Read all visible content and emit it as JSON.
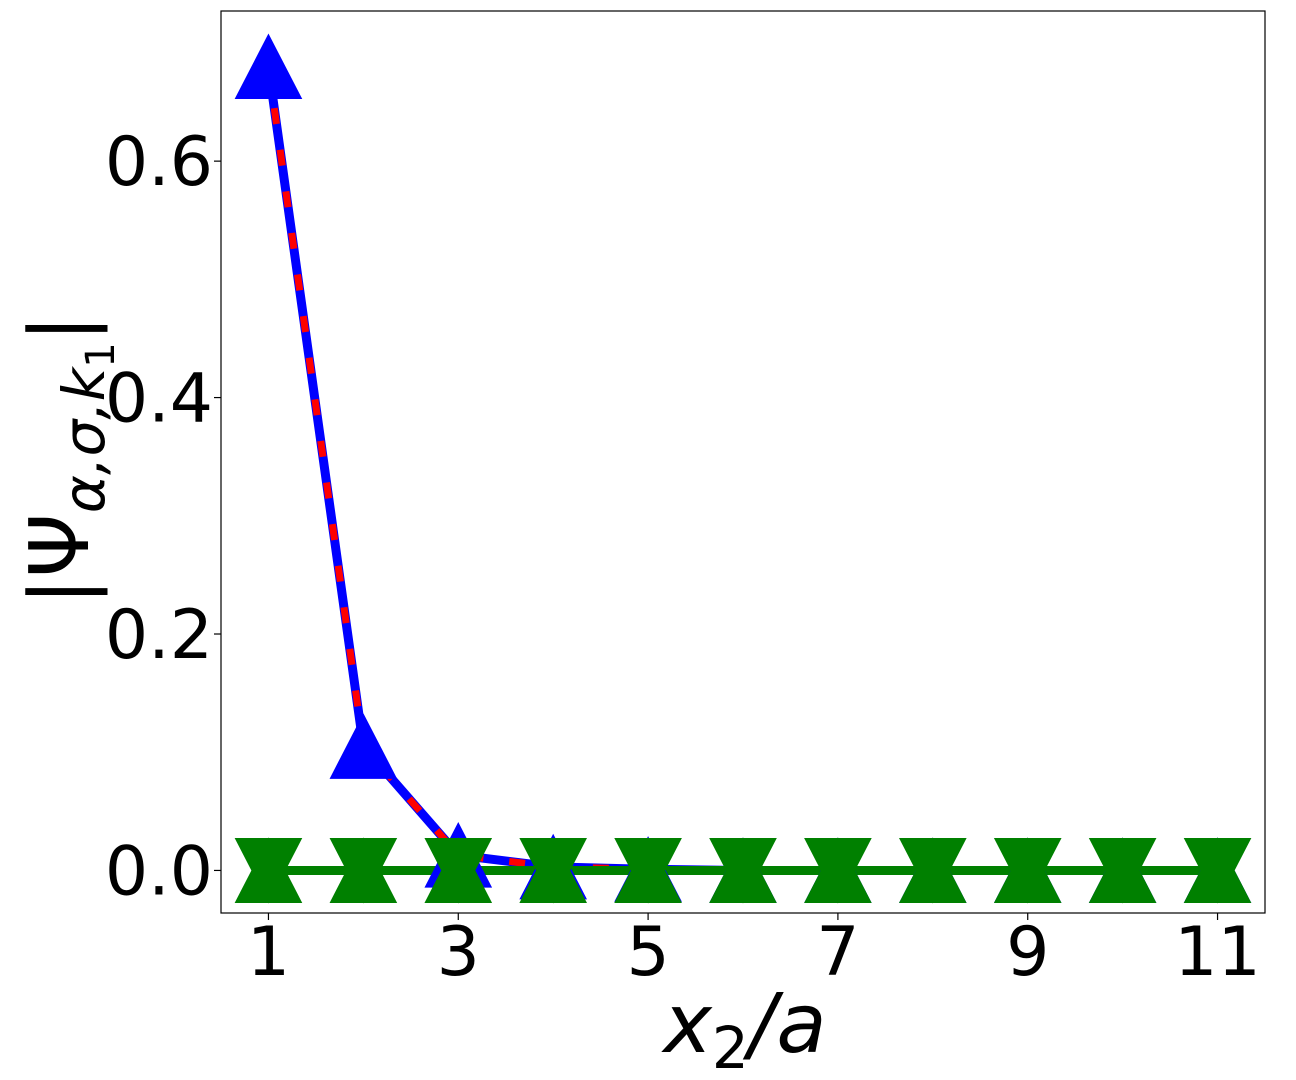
{
  "chart_data": {
    "type": "line",
    "title": "",
    "xlabel_main": "x",
    "xlabel_sub": "2",
    "xlabel_tail": "/a",
    "ylabel_base": "|Ψ",
    "ylabel_sub": "α,σ,k",
    "ylabel_subsub": "1",
    "ylabel_close": "|",
    "xlim": [
      0.5,
      11.5
    ],
    "ylim": [
      -0.036,
      0.727
    ],
    "xticks": [
      1,
      3,
      5,
      7,
      9,
      11
    ],
    "yticks": [
      0.0,
      0.2,
      0.4,
      0.6
    ],
    "ytick_labels": [
      "0.0",
      "0.2",
      "0.4",
      "0.6"
    ],
    "grid": false,
    "series": [
      {
        "color": "#0000ff",
        "line": "solid",
        "marker": "triangle-up",
        "x": [
          1,
          2,
          3,
          4,
          5,
          6,
          7,
          8,
          9,
          10,
          11
        ],
        "y": [
          0.68,
          0.105,
          0.013,
          0.003,
          0.001,
          0.0,
          0.0,
          0.0,
          0.0,
          0.0,
          0.0
        ]
      },
      {
        "color": "#ff0000",
        "line": "dashed",
        "marker": "none",
        "x": [
          1,
          2,
          3,
          4,
          5,
          6,
          7,
          8,
          9,
          10,
          11
        ],
        "y": [
          0.68,
          0.105,
          0.013,
          0.003,
          0.001,
          0.0,
          0.0,
          0.0,
          0.0,
          0.0,
          0.0
        ]
      },
      {
        "color": "#008000",
        "line": "solid",
        "marker": "triangle-up",
        "x": [
          1,
          2,
          3,
          4,
          5,
          6,
          7,
          8,
          9,
          10,
          11
        ],
        "y": [
          0.0,
          0.0,
          0.0,
          0.0,
          0.0,
          0.0,
          0.0,
          0.0,
          0.0,
          0.0,
          0.0
        ]
      },
      {
        "color": "#008000",
        "line": "none",
        "marker": "triangle-down",
        "x": [
          1,
          2,
          3,
          4,
          5,
          6,
          7,
          8,
          9,
          10,
          11
        ],
        "y": [
          0.0,
          0.0,
          0.0,
          0.0,
          0.0,
          0.0,
          0.0,
          0.0,
          0.0,
          0.0,
          0.0
        ]
      }
    ]
  }
}
